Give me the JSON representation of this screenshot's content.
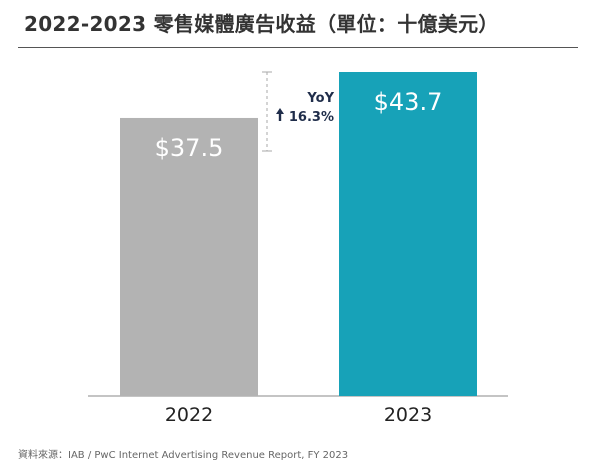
{
  "title": "2022-2023 零售媒體廣告收益（單位：十億美元）",
  "source": "資料來源：IAB / PwC Internet Advertising Revenue Report, FY 2023",
  "yoy": {
    "label": "YoY",
    "change": "16.3%",
    "direction": "up"
  },
  "colors": {
    "bar_2022": "#b3b3b3",
    "bar_2023": "#17a2b8",
    "yoy_text": "#1f2d4a",
    "axis": "#888888"
  },
  "chart_data": {
    "type": "bar",
    "categories": [
      "2022",
      "2023"
    ],
    "values": [
      37.5,
      43.7
    ],
    "value_labels": [
      "$37.5",
      "$43.7"
    ],
    "title": "2022-2023 零售媒體廣告收益（單位：十億美元）",
    "xlabel": "",
    "ylabel": "",
    "ylim": [
      0,
      43.7
    ],
    "grid": false,
    "legend": "none"
  }
}
